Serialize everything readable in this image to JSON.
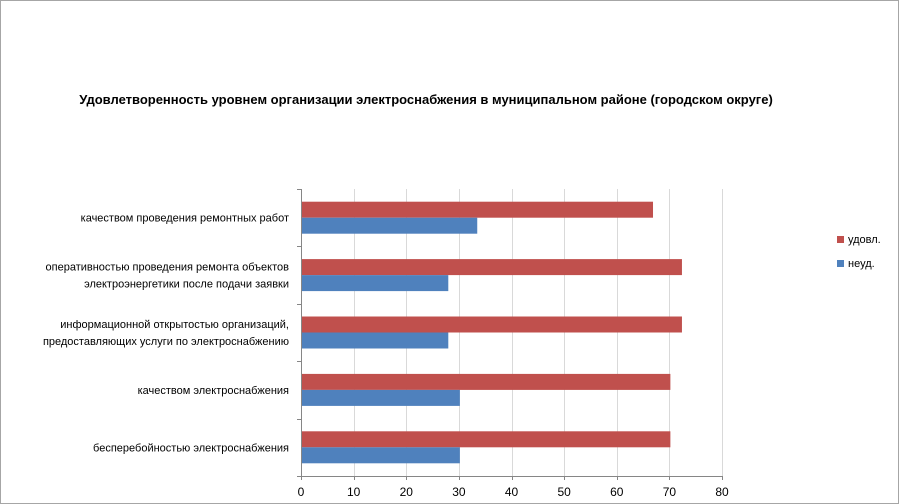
{
  "chart_data": {
    "type": "bar",
    "orientation": "horizontal",
    "title": "Удовлетворенность уровнем организации электроснабжения в муниципальном районе (городском округе)",
    "categories": [
      [
        "качеством проведения ремонтных работ"
      ],
      [
        "оперативностью проведения ремонта объектов",
        "электроэнергетики после подачи заявки"
      ],
      [
        "информационной открытостью организаций,",
        "предоставляющих услуги по электроснабжению"
      ],
      [
        "качеством электроснабжения"
      ],
      [
        "бесперебойностью электроснабжения"
      ]
    ],
    "series": [
      {
        "name": "удовл.",
        "color": "#c0504d",
        "values": [
          66.7,
          72.2,
          72.2,
          70,
          70
        ]
      },
      {
        "name": "неуд.",
        "color": "#4f81bd",
        "values": [
          33.3,
          27.8,
          27.8,
          30,
          30
        ]
      }
    ],
    "xlim": [
      0,
      80
    ],
    "xticks": [
      0,
      10,
      20,
      30,
      40,
      50,
      60,
      70,
      80
    ],
    "grid": true,
    "legend_position": "right"
  }
}
